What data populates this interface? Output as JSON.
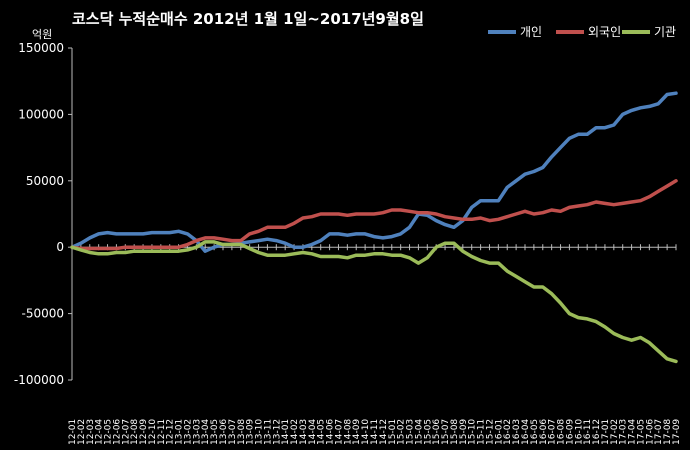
{
  "chart_data": {
    "type": "line",
    "title": "코스닥  누적순매수 2012년 1월 1일~2017년9월8일",
    "unit_label": "억원",
    "ylim": [
      -100000,
      150000
    ],
    "yticks": [
      150000,
      100000,
      50000,
      0,
      -50000,
      -100000
    ],
    "grid": false,
    "legend_position": "top-right",
    "categories": [
      "12-01",
      "12-02",
      "12-03",
      "12-04",
      "12-05",
      "12-06",
      "12-07",
      "12-08",
      "12-09",
      "12-10",
      "12-11",
      "12-12",
      "13-01",
      "13-02",
      "13-03",
      "13-04",
      "13-05",
      "13-06",
      "13-07",
      "13-08",
      "13-09",
      "13-10",
      "13-11",
      "13-12",
      "14-01",
      "14-02",
      "14-03",
      "14-04",
      "14-05",
      "14-06",
      "14-07",
      "14-08",
      "14-09",
      "14-10",
      "14-11",
      "14-12",
      "15-01",
      "15-02",
      "15-03",
      "15-04",
      "15-05",
      "15-06",
      "15-07",
      "15-08",
      "15-09",
      "15-10",
      "15-11",
      "15-12",
      "16-01",
      "16-02",
      "16-03",
      "16-04",
      "16-05",
      "16-06",
      "16-07",
      "16-08",
      "16-09",
      "16-10",
      "16-11",
      "16-12",
      "17-01",
      "17-02",
      "17-03",
      "17-04",
      "17-05",
      "17-06",
      "17-07",
      "17-08",
      "17-09"
    ],
    "series": [
      {
        "name": "개인",
        "color": "#4F81BD",
        "values": [
          0,
          3000,
          7000,
          10000,
          11000,
          10000,
          10000,
          10000,
          10000,
          11000,
          11000,
          11000,
          12000,
          10000,
          5000,
          -3000,
          0,
          2000,
          2000,
          3000,
          4000,
          5000,
          6000,
          5000,
          3000,
          0,
          0,
          2000,
          5000,
          10000,
          10000,
          9000,
          10000,
          10000,
          8000,
          7000,
          8000,
          10000,
          15000,
          25000,
          24000,
          20000,
          17000,
          15000,
          20000,
          30000,
          35000,
          35000,
          35000,
          45000,
          50000,
          55000,
          57000,
          60000,
          68000,
          75000,
          82000,
          85000,
          85000,
          90000,
          90000,
          92000,
          100000,
          103000,
          105000,
          106000,
          108000,
          115000,
          116000
        ]
      },
      {
        "name": "외국인",
        "color": "#C0504D",
        "values": [
          0,
          -1000,
          -1000,
          -1000,
          -1000,
          -1000,
          0,
          0,
          0,
          0,
          0,
          0,
          0,
          2000,
          5000,
          7000,
          7000,
          6000,
          5000,
          5000,
          10000,
          12000,
          15000,
          15000,
          15000,
          18000,
          22000,
          23000,
          25000,
          25000,
          25000,
          24000,
          25000,
          25000,
          25000,
          26000,
          28000,
          28000,
          27000,
          26000,
          26000,
          25000,
          23000,
          22000,
          21000,
          21000,
          22000,
          20000,
          21000,
          23000,
          25000,
          27000,
          25000,
          26000,
          28000,
          27000,
          30000,
          31000,
          32000,
          34000,
          33000,
          32000,
          33000,
          34000,
          35000,
          38000,
          42000,
          46000,
          50000
        ]
      },
      {
        "name": "기관",
        "color": "#9BBB59",
        "values": [
          0,
          -2000,
          -4000,
          -5000,
          -5000,
          -4000,
          -4000,
          -3000,
          -3000,
          -3000,
          -3000,
          -3000,
          -3000,
          -2000,
          0,
          4000,
          4000,
          2000,
          2000,
          2000,
          -1000,
          -4000,
          -6000,
          -6000,
          -6000,
          -5000,
          -4000,
          -5000,
          -7000,
          -7000,
          -7000,
          -8000,
          -6000,
          -6000,
          -5000,
          -5000,
          -6000,
          -6000,
          -8000,
          -12000,
          -8000,
          0,
          3000,
          3000,
          -3000,
          -7000,
          -10000,
          -12000,
          -12000,
          -18000,
          -22000,
          -26000,
          -30000,
          -30000,
          -35000,
          -42000,
          -50000,
          -53000,
          -54000,
          -56000,
          -60000,
          -65000,
          -68000,
          -70000,
          -68000,
          -72000,
          -78000,
          -84000,
          -86000
        ]
      }
    ]
  }
}
